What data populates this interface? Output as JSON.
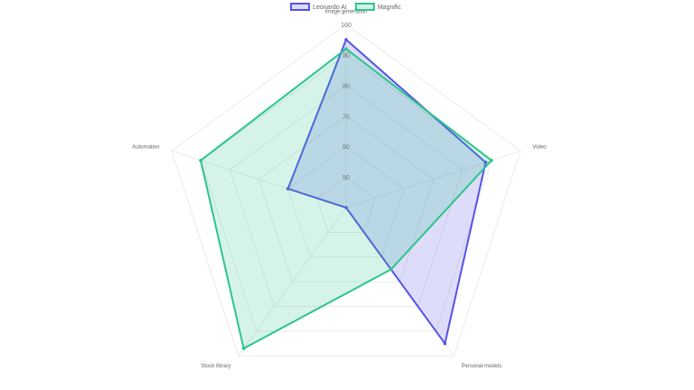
{
  "chart_data": {
    "type": "radar",
    "categories": [
      "Image generation",
      "Video",
      "Personal models",
      "Stock library",
      "Automation"
    ],
    "rlim": [
      40,
      100
    ],
    "rticks": [
      50,
      60,
      70,
      80,
      90,
      100
    ],
    "grid": true,
    "legend": "top",
    "series": [
      {
        "name": "Leonardo AI",
        "color": "#5553e6",
        "values": [
          95,
          88,
          95,
          40,
          60
        ]
      },
      {
        "name": "Magnific",
        "color": "#2dc58c",
        "values": [
          92,
          90,
          65,
          97,
          90
        ]
      }
    ]
  }
}
